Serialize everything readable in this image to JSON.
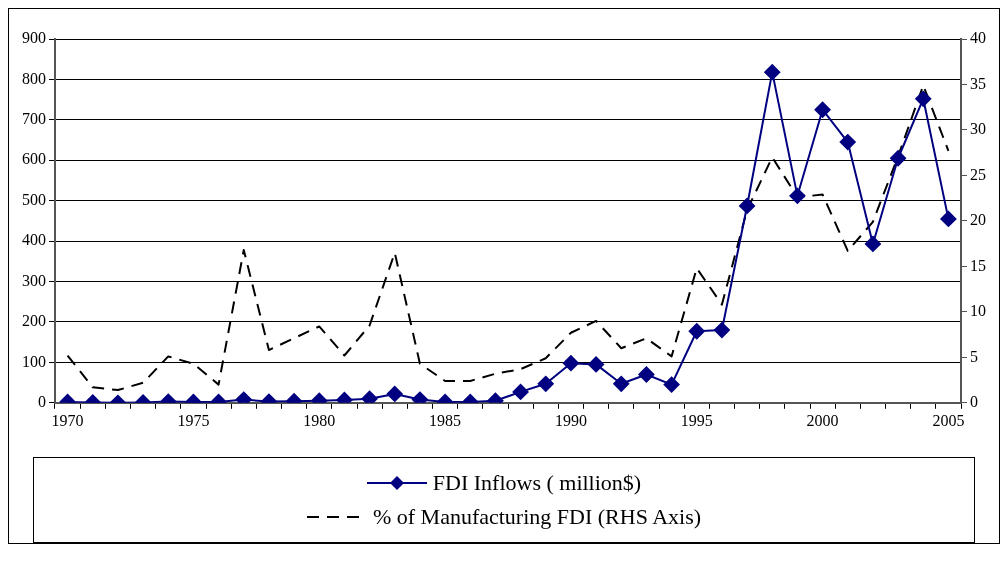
{
  "chart_data": {
    "type": "line",
    "categories": [
      "1970",
      null,
      null,
      null,
      null,
      "1975",
      null,
      null,
      null,
      null,
      "1980",
      null,
      null,
      null,
      null,
      "1985",
      null,
      null,
      null,
      null,
      "1990",
      null,
      null,
      null,
      null,
      "1995",
      null,
      null,
      null,
      null,
      "2000",
      null,
      null,
      null,
      null,
      "2005"
    ],
    "series": [
      {
        "name": "FDI Inflows ( million$)",
        "color": "#000080",
        "marker": "diamond",
        "line_style": "solid",
        "values": [
          2,
          1,
          0,
          1,
          3,
          2,
          2,
          8,
          3,
          4,
          5,
          7,
          10,
          22,
          8,
          2,
          2,
          5,
          27,
          47,
          98,
          95,
          47,
          70,
          45,
          177,
          180,
          487,
          818,
          512,
          725,
          645,
          393,
          605,
          752,
          455
        ]
      },
      {
        "name": "% of Manufacturing FDI (RHS Axis)",
        "color": "#000000",
        "marker": "none",
        "line_style": "dashed",
        "axis": "y2",
        "values": [
          5.2,
          1.7,
          1.4,
          2.2,
          5.1,
          4.3,
          2.0,
          16.8,
          5.8,
          7.1,
          8.4,
          5.2,
          8.5,
          16.5,
          4.3,
          2.4,
          2.4,
          3.2,
          3.7,
          4.9,
          7.7,
          9.0,
          6.0,
          7.1,
          5.1,
          14.8,
          10.8,
          21.2,
          27.0,
          22.6,
          22.9,
          16.7,
          19.9,
          27.1,
          34.9,
          27.7
        ]
      }
    ],
    "ylim": [
      0,
      900
    ],
    "yticks": [
      0,
      100,
      200,
      300,
      400,
      500,
      600,
      700,
      800,
      900
    ],
    "y2lim": [
      0,
      40
    ],
    "y2ticks": [
      0,
      5,
      10,
      15,
      20,
      25,
      30,
      35,
      40
    ],
    "grid": "y",
    "legend": "bottom"
  }
}
